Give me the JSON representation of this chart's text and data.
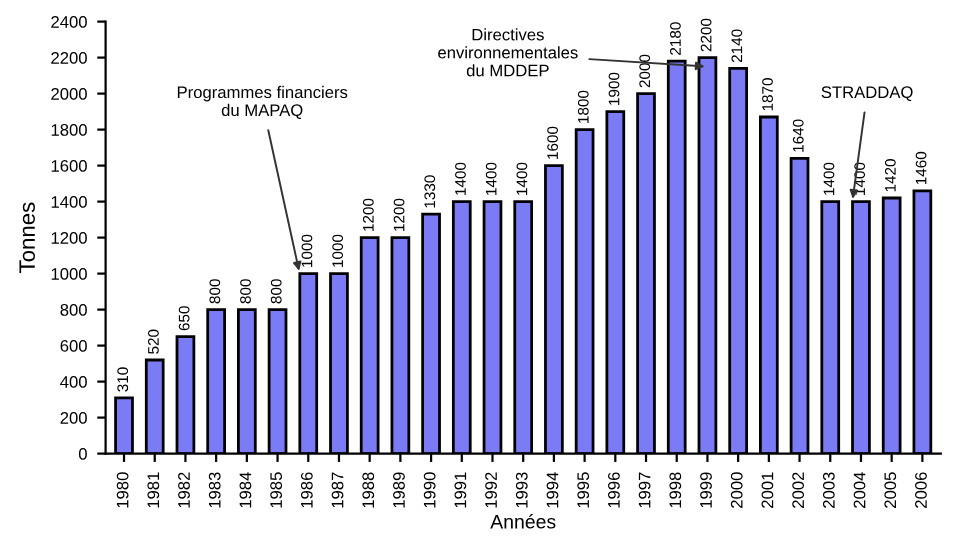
{
  "chart_data": {
    "type": "bar",
    "xlabel": "Années",
    "ylabel": "Tonnes",
    "categories": [
      "1980",
      "1981",
      "1982",
      "1983",
      "1984",
      "1985",
      "1986",
      "1987",
      "1988",
      "1989",
      "1990",
      "1991",
      "1992",
      "1993",
      "1994",
      "1995",
      "1996",
      "1997",
      "1998",
      "1999",
      "2000",
      "2001",
      "2002",
      "2003",
      "2004",
      "2005",
      "2006"
    ],
    "values": [
      310,
      520,
      650,
      800,
      800,
      800,
      1000,
      1000,
      1200,
      1200,
      1330,
      1400,
      1400,
      1400,
      1600,
      1800,
      1900,
      2000,
      2180,
      2200,
      2140,
      1870,
      1640,
      1400,
      1400,
      1420,
      1460
    ],
    "color": "#7b7bf5",
    "ylim": [
      0,
      2400
    ],
    "yticks": [
      0,
      200,
      400,
      600,
      800,
      1000,
      1200,
      1400,
      1600,
      1800,
      2000,
      2200,
      2400
    ],
    "data_labels": true,
    "grid": false,
    "legend": false,
    "annotations": [
      {
        "text": "Programmes financiers\ndu MAPAQ",
        "x": "1986",
        "y": 1000
      },
      {
        "text": "Directives\nenvironnementales\ndu MDDEP",
        "x": "1999",
        "y": 2150
      },
      {
        "text": "STRADDAQ",
        "x": "2004",
        "y": 1400
      }
    ]
  }
}
